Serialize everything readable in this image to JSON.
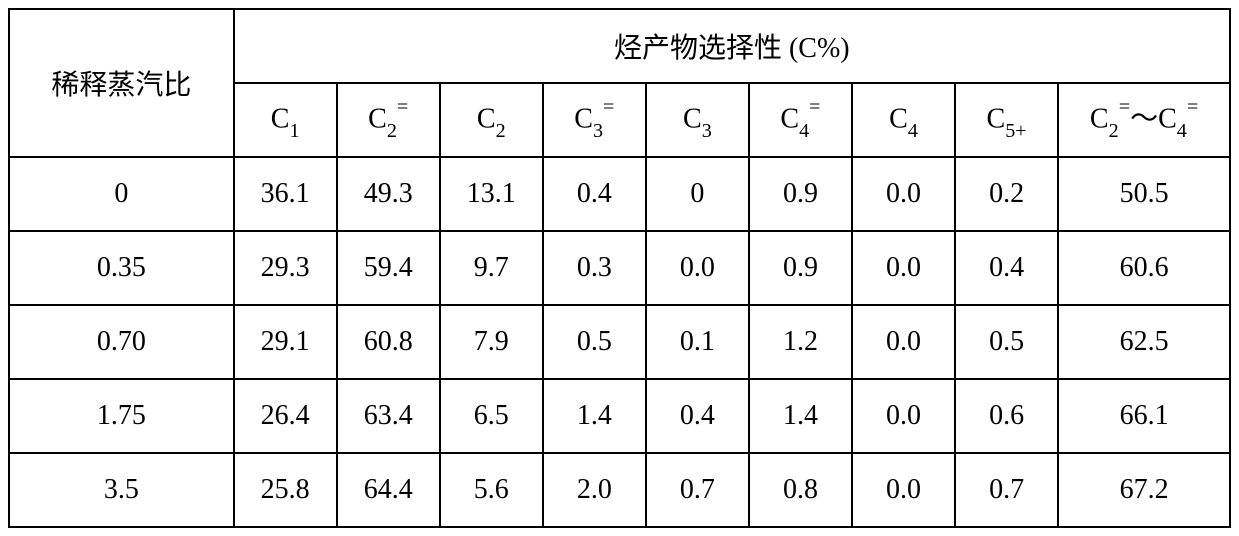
{
  "table": {
    "row_header_label": "稀释蒸汽比",
    "group_header_label": "烃产物选择性 (C%)",
    "columns": [
      {
        "base": "C",
        "sub": "1",
        "sup": ""
      },
      {
        "base": "C",
        "sub": "2",
        "sup": "="
      },
      {
        "base": "C",
        "sub": "2",
        "sup": ""
      },
      {
        "base": "C",
        "sub": "3",
        "sup": "="
      },
      {
        "base": "C",
        "sub": "3",
        "sup": ""
      },
      {
        "base": "C",
        "sub": "4",
        "sup": "="
      },
      {
        "base": "C",
        "sub": "4",
        "sup": ""
      },
      {
        "base": "C",
        "sub": "5+",
        "sup": ""
      }
    ],
    "range_column": {
      "left": {
        "base": "C",
        "sub": "2",
        "sup": "="
      },
      "tilde": "～",
      "right": {
        "base": "C",
        "sub": "4",
        "sup": "="
      }
    },
    "rows": [
      {
        "ratio": "0",
        "vals": [
          "36.1",
          "49.3",
          "13.1",
          "0.4",
          "0",
          "0.9",
          "0.0",
          "0.2",
          "50.5"
        ]
      },
      {
        "ratio": "0.35",
        "vals": [
          "29.3",
          "59.4",
          "9.7",
          "0.3",
          "0.0",
          "0.9",
          "0.0",
          "0.4",
          "60.6"
        ]
      },
      {
        "ratio": "0.70",
        "vals": [
          "29.1",
          "60.8",
          "7.9",
          "0.5",
          "0.1",
          "1.2",
          "0.0",
          "0.5",
          "62.5"
        ]
      },
      {
        "ratio": "1.75",
        "vals": [
          "26.4",
          "63.4",
          "6.5",
          "1.4",
          "0.4",
          "1.4",
          "0.0",
          "0.6",
          "66.1"
        ]
      },
      {
        "ratio": "3.5",
        "vals": [
          "25.8",
          "64.4",
          "5.6",
          "2.0",
          "0.7",
          "0.8",
          "0.0",
          "0.7",
          "67.2"
        ]
      }
    ],
    "colors": {
      "border": "#000000",
      "background": "#ffffff",
      "text": "#000000"
    },
    "font": {
      "size_pt": 28,
      "family": "SimSun / Times New Roman"
    }
  }
}
